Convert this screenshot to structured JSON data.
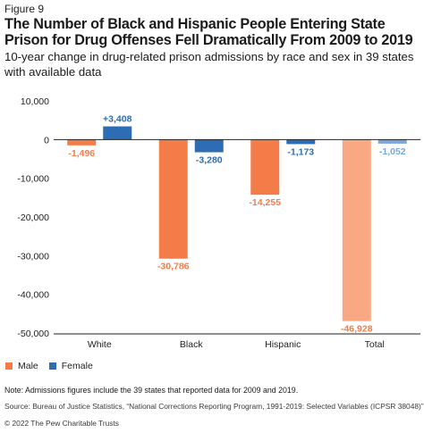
{
  "figure_label": "Figure 9",
  "title": "The Number of Black and Hispanic People Entering State Prison for Drug Offenses Fell Dramatically From 2009 to 2019",
  "subtitle": "10-year change in drug-related prison admissions by race and sex in 39 states with available data",
  "colors": {
    "male": "#f47c48",
    "female": "#2e6db4",
    "total": "#f8a882",
    "total_label": "#7aa6d8",
    "axis": "#222222",
    "grid": "#cccccc"
  },
  "chart_data": {
    "type": "bar",
    "categories": [
      "White",
      "Black",
      "Hispanic",
      "Total"
    ],
    "series": [
      {
        "name": "Male",
        "values": [
          -1496,
          -30786,
          -14255,
          -46928
        ]
      },
      {
        "name": "Female",
        "values": [
          3408,
          -3280,
          -1173,
          -1052
        ]
      }
    ],
    "data_labels": {
      "Male": [
        "-1,496",
        "-30,786",
        "-14,255",
        "-46,928"
      ],
      "Female": [
        "+3,408",
        "-3,280",
        "-1,173",
        "-1,052"
      ]
    },
    "y_ticks": [
      "10,000",
      "0",
      "-10,000",
      "-20,000",
      "-30,000",
      "-40,000",
      "-50,000"
    ],
    "y_tick_values": [
      10000,
      0,
      -10000,
      -20000,
      -30000,
      -40000,
      -50000
    ],
    "ylim": [
      -50000,
      10000
    ],
    "grid": false,
    "legend_position": "bottom-left"
  },
  "legend": {
    "male": "Male",
    "female": "Female"
  },
  "note": "Note: Admissions figures include the 39 states that reported data for 2009 and 2019.",
  "source": "Source: Bureau of Justice Statistics, “National Corrections Reporting Program, 1991-2019: Selected Variables (ICPSR 38048)”",
  "copyright": "© 2022 The Pew Charitable Trusts"
}
